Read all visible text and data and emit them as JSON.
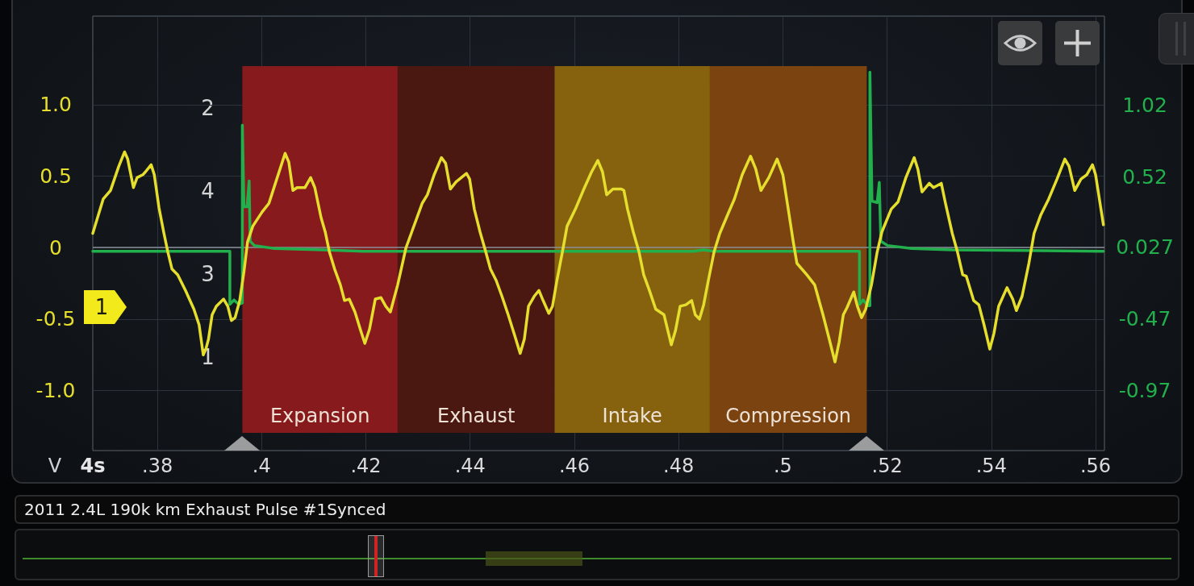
{
  "chart_data": {
    "type": "line",
    "title": "2011 2.4L 190k km Exhaust Pulse #1Synced",
    "xlabel": "4s",
    "ylabel": "V",
    "annotations": [
      "2",
      "4",
      "3",
      "1",
      "1"
    ],
    "xlim": [
      0.3676,
      0.5617
    ],
    "xticks": [
      {
        "value": 0.38,
        "label": ".38"
      },
      {
        "value": 0.4,
        "label": ".4"
      },
      {
        "value": 0.42,
        "label": ".42"
      },
      {
        "value": 0.44,
        "label": ".44"
      },
      {
        "value": 0.46,
        "label": ".46"
      },
      {
        "value": 0.48,
        "label": ".48"
      },
      {
        "value": 0.5,
        "label": ".5"
      },
      {
        "value": 0.52,
        "label": ".52"
      },
      {
        "value": 0.54,
        "label": ".54"
      },
      {
        "value": 0.56,
        "label": ".56"
      }
    ],
    "ylim": [
      -1.42,
      1.62
    ],
    "yticks": [
      {
        "value": 1,
        "label": "1.0"
      },
      0.5,
      0,
      -0.5,
      {
        "value": -1,
        "label": "-1.0"
      }
    ],
    "y2lim": [
      -1.39,
      1.64
    ],
    "y2ticks": [
      1.02,
      0.52,
      0.027,
      -0.47,
      -0.97
    ],
    "grid": true,
    "marker": "none",
    "line_style": "solid",
    "series": [
      {
        "color": "#e6de2c",
        "x": [
          0.3676,
          0.3696,
          0.371,
          0.3726,
          0.3737,
          0.3743,
          0.3754,
          0.3761,
          0.3772,
          0.3777,
          0.3788,
          0.3794,
          0.3803,
          0.3812,
          0.382,
          0.3828,
          0.3839,
          0.3854,
          0.387,
          0.388,
          0.3888,
          0.3893,
          0.3898,
          0.3905,
          0.3913,
          0.3927,
          0.3935,
          0.3942,
          0.3949,
          0.3958,
          0.3966,
          0.3973,
          0.3983,
          0.4001,
          0.4014,
          0.4029,
          0.4045,
          0.4052,
          0.406,
          0.4068,
          0.4083,
          0.4094,
          0.4102,
          0.4114,
          0.4122,
          0.413,
          0.414,
          0.4151,
          0.4159,
          0.4168,
          0.4179,
          0.419,
          0.4198,
          0.4207,
          0.4218,
          0.4229,
          0.4238,
          0.4247,
          0.4261,
          0.4277,
          0.4288,
          0.4308,
          0.4318,
          0.4331,
          0.4345,
          0.4353,
          0.4362,
          0.4373,
          0.4383,
          0.4393,
          0.4399,
          0.4408,
          0.4419,
          0.443,
          0.4439,
          0.445,
          0.4461,
          0.4473,
          0.4486,
          0.4496,
          0.4504,
          0.4512,
          0.4523,
          0.4532,
          0.454,
          0.4551,
          0.4558,
          0.4566,
          0.4577,
          0.4586,
          0.4602,
          0.4617,
          0.4633,
          0.4645,
          0.4654,
          0.4662,
          0.4674,
          0.469,
          0.4695,
          0.4702,
          0.4713,
          0.4724,
          0.4733,
          0.4744,
          0.4756,
          0.4772,
          0.4786,
          0.4794,
          0.4803,
          0.4814,
          0.4825,
          0.4832,
          0.484,
          0.4848,
          0.4857,
          0.4868,
          0.4879,
          0.4894,
          0.4907,
          0.4922,
          0.4938,
          0.4948,
          0.4958,
          0.4973,
          0.4989,
          0.5,
          0.5012,
          0.502,
          0.5027,
          0.5046,
          0.5061,
          0.5077,
          0.5089,
          0.51,
          0.5108,
          0.5116,
          0.5123,
          0.5136,
          0.5143,
          0.5151,
          0.5159,
          0.517,
          0.5181,
          0.519,
          0.5208,
          0.5221,
          0.5236,
          0.5252,
          0.5259,
          0.5267,
          0.5281,
          0.5289,
          0.5304,
          0.5312,
          0.5325,
          0.5335,
          0.5345,
          0.5352,
          0.5366,
          0.5376,
          0.5386,
          0.5397,
          0.5405,
          0.5414,
          0.543,
          0.5441,
          0.5448,
          0.5459,
          0.5472,
          0.5482,
          0.5495,
          0.551,
          0.5526,
          0.5541,
          0.5549,
          0.556,
          0.5572,
          0.5583,
          0.5594,
          0.56,
          0.5615
        ],
        "values": [
          0.1,
          0.34,
          0.4,
          0.57,
          0.67,
          0.62,
          0.42,
          0.49,
          0.51,
          0.53,
          0.58,
          0.51,
          0.28,
          0.11,
          -0.03,
          -0.15,
          -0.19,
          -0.3,
          -0.43,
          -0.54,
          -0.75,
          -0.71,
          -0.64,
          -0.47,
          -0.41,
          -0.36,
          -0.41,
          -0.51,
          -0.49,
          -0.37,
          -0.17,
          0.04,
          0.15,
          0.25,
          0.31,
          0.48,
          0.66,
          0.6,
          0.4,
          0.42,
          0.42,
          0.49,
          0.42,
          0.21,
          0.11,
          -0.03,
          -0.15,
          -0.26,
          -0.37,
          -0.36,
          -0.45,
          -0.58,
          -0.67,
          -0.57,
          -0.36,
          -0.35,
          -0.41,
          -0.45,
          -0.26,
          0.0,
          0.11,
          0.31,
          0.37,
          0.51,
          0.63,
          0.59,
          0.41,
          0.46,
          0.49,
          0.52,
          0.48,
          0.27,
          0.11,
          -0.03,
          -0.15,
          -0.23,
          -0.34,
          -0.47,
          -0.62,
          -0.74,
          -0.64,
          -0.41,
          -0.34,
          -0.3,
          -0.37,
          -0.46,
          -0.41,
          -0.24,
          -0.03,
          0.15,
          0.27,
          0.4,
          0.53,
          0.61,
          0.53,
          0.37,
          0.41,
          0.41,
          0.4,
          0.27,
          0.11,
          -0.03,
          -0.19,
          -0.3,
          -0.43,
          -0.47,
          -0.68,
          -0.58,
          -0.41,
          -0.4,
          -0.37,
          -0.47,
          -0.5,
          -0.4,
          -0.23,
          -0.03,
          0.1,
          0.23,
          0.34,
          0.51,
          0.64,
          0.55,
          0.4,
          0.49,
          0.62,
          0.51,
          0.23,
          0.04,
          -0.11,
          -0.19,
          -0.26,
          -0.47,
          -0.64,
          -0.8,
          -0.66,
          -0.47,
          -0.42,
          -0.31,
          -0.41,
          -0.49,
          -0.43,
          -0.26,
          -0.03,
          0.11,
          0.27,
          0.32,
          0.49,
          0.63,
          0.55,
          0.39,
          0.45,
          0.42,
          0.45,
          0.31,
          0.1,
          -0.03,
          -0.19,
          -0.2,
          -0.37,
          -0.4,
          -0.54,
          -0.71,
          -0.6,
          -0.41,
          -0.28,
          -0.36,
          -0.44,
          -0.34,
          -0.11,
          0.1,
          0.23,
          0.34,
          0.48,
          0.62,
          0.57,
          0.4,
          0.48,
          0.51,
          0.58,
          0.51,
          0.16
        ]
      },
      {
        "color": "#22b04c",
        "axis": "y2",
        "x": [
          0.3676,
          0.3939,
          0.3939,
          0.3947,
          0.3956,
          0.3963,
          0.3963,
          0.3966,
          0.3972,
          0.3976,
          0.3978,
          0.3986,
          0.4024,
          0.4117,
          0.4195,
          0.4829,
          0.4848,
          0.4868,
          0.5147,
          0.5147,
          0.5154,
          0.5163,
          0.5167,
          0.5167,
          0.5171,
          0.5181,
          0.5185,
          0.5188,
          0.5201,
          0.5247,
          0.5325,
          0.5615
        ],
        "values": [
          0,
          0,
          -0.37,
          -0.34,
          -0.37,
          -0.36,
          0.88,
          0.31,
          0.31,
          0.49,
          0.07,
          0.04,
          0.02,
          0.01,
          0,
          0,
          0.01,
          0,
          0,
          -0.37,
          -0.34,
          -0.38,
          -0.38,
          1.25,
          0.35,
          0.34,
          0.48,
          0.07,
          0.04,
          0.02,
          0.01,
          0
        ]
      }
    ],
    "bands": [
      {
        "axis": "x",
        "from": 0.3963,
        "to": 0.4261,
        "label": "Expansion",
        "color": "#861a1c"
      },
      {
        "axis": "x",
        "from": 0.4261,
        "to": 0.4562,
        "label": "Exhaust",
        "color": "#4a1711"
      },
      {
        "axis": "x",
        "from": 0.4562,
        "to": 0.486,
        "label": "Intake",
        "color": "#86620f"
      },
      {
        "axis": "x",
        "from": 0.486,
        "to": 0.5161,
        "label": "Compression",
        "color": "#7a430f"
      }
    ],
    "ref_lines": [
      {
        "axis": "y",
        "value": 0,
        "color": "#8a9098"
      }
    ]
  }
}
